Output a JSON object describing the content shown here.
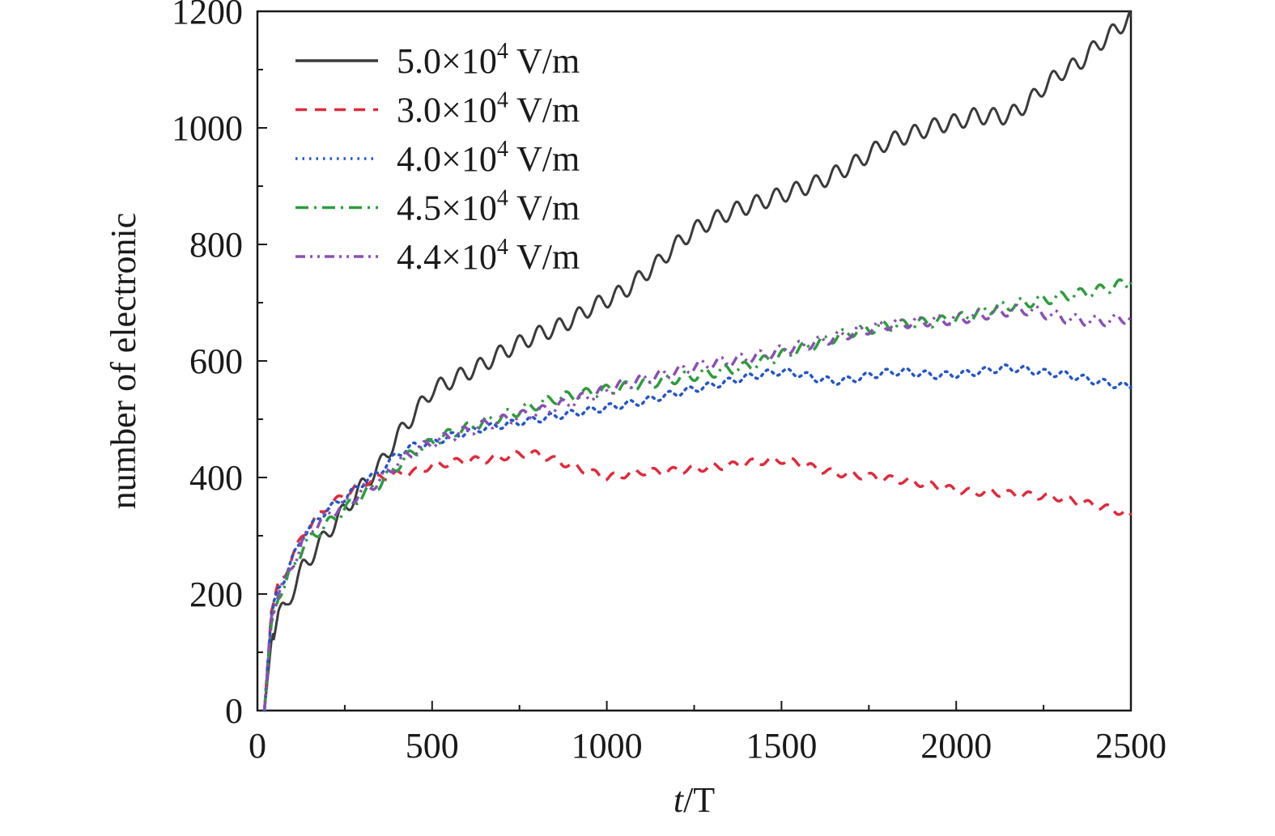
{
  "chart_data": {
    "type": "line",
    "xlabel_italic": "t",
    "xlabel_rest": "/T",
    "ylabel": "number of electronic",
    "xlim": [
      0,
      2500
    ],
    "ylim": [
      0,
      1200
    ],
    "xticks": [
      0,
      500,
      1000,
      1500,
      2000,
      2500
    ],
    "yticks": [
      0,
      200,
      400,
      600,
      800,
      1000,
      1200
    ],
    "xtick_labels": [
      "0",
      "500",
      "1000",
      "1500",
      "2000",
      "2500"
    ],
    "ytick_labels": [
      "0",
      "200",
      "400",
      "600",
      "800",
      "1000",
      "1200"
    ],
    "grid": false,
    "legend_position": "top-left",
    "series": [
      {
        "name": "5.0×10⁴ V/m",
        "name_base": "5.0×10",
        "name_exp": "4",
        "name_unit": " V/m",
        "color": "#3a3a3a",
        "style": "solid",
        "x": [
          20,
          40,
          60,
          80,
          100,
          130,
          160,
          200,
          250,
          300,
          350,
          400,
          450,
          500,
          550,
          600,
          650,
          700,
          750,
          800,
          850,
          900,
          950,
          1000,
          1050,
          1100,
          1150,
          1200,
          1250,
          1300,
          1350,
          1400,
          1450,
          1500,
          1550,
          1600,
          1650,
          1700,
          1750,
          1800,
          1850,
          1900,
          1950,
          2000,
          2050,
          2100,
          2150,
          2200,
          2250,
          2300,
          2350,
          2400,
          2450,
          2500
        ],
        "y": [
          0,
          120,
          165,
          175,
          205,
          245,
          270,
          305,
          345,
          385,
          420,
          470,
          510,
          550,
          565,
          580,
          595,
          615,
          630,
          645,
          655,
          670,
          690,
          705,
          720,
          745,
          770,
          800,
          825,
          840,
          855,
          865,
          875,
          885,
          895,
          905,
          920,
          935,
          955,
          975,
          985,
          995,
          1005,
          1010,
          1020,
          1020,
          1020,
          1040,
          1070,
          1095,
          1110,
          1140,
          1165,
          1190
        ],
        "wiggle": 14
      },
      {
        "name": "3.0×10⁴ V/m",
        "name_base": "3.0×10",
        "name_exp": "4",
        "name_unit": " V/m",
        "color": "#e02a3c",
        "style": "dashed",
        "x": [
          20,
          40,
          60,
          80,
          100,
          130,
          160,
          200,
          250,
          300,
          350,
          400,
          450,
          500,
          550,
          600,
          650,
          700,
          750,
          800,
          850,
          900,
          950,
          1000,
          1050,
          1100,
          1150,
          1200,
          1250,
          1300,
          1350,
          1400,
          1450,
          1500,
          1550,
          1600,
          1650,
          1700,
          1750,
          1800,
          1850,
          1900,
          1950,
          2000,
          2050,
          2100,
          2150,
          2200,
          2250,
          2300,
          2350,
          2400,
          2450,
          2500
        ],
        "y": [
          0,
          170,
          215,
          235,
          265,
          300,
          325,
          350,
          370,
          390,
          400,
          405,
          410,
          420,
          425,
          430,
          430,
          435,
          440,
          440,
          430,
          420,
          410,
          400,
          405,
          410,
          410,
          412,
          415,
          418,
          420,
          425,
          428,
          430,
          425,
          415,
          408,
          405,
          402,
          398,
          395,
          390,
          385,
          378,
          375,
          375,
          372,
          370,
          368,
          365,
          358,
          352,
          345,
          335
        ],
        "wiggle": 6
      },
      {
        "name": "4.0×10⁴ V/m",
        "name_base": "4.0×10",
        "name_exp": "4",
        "name_unit": " V/m",
        "color": "#2456c8",
        "style": "dotted",
        "x": [
          20,
          40,
          60,
          80,
          100,
          130,
          160,
          200,
          250,
          300,
          350,
          400,
          450,
          500,
          550,
          600,
          650,
          700,
          750,
          800,
          850,
          900,
          950,
          1000,
          1050,
          1100,
          1150,
          1200,
          1250,
          1300,
          1350,
          1400,
          1450,
          1500,
          1550,
          1600,
          1650,
          1700,
          1750,
          1800,
          1850,
          1900,
          1950,
          2000,
          2050,
          2100,
          2150,
          2200,
          2250,
          2300,
          2350,
          2400,
          2450,
          2500
        ],
        "y": [
          0,
          165,
          210,
          230,
          260,
          300,
          320,
          345,
          365,
          390,
          410,
          440,
          455,
          460,
          470,
          478,
          485,
          490,
          495,
          500,
          505,
          510,
          515,
          520,
          525,
          530,
          538,
          545,
          552,
          558,
          565,
          572,
          578,
          582,
          578,
          570,
          565,
          568,
          575,
          580,
          582,
          578,
          575,
          577,
          580,
          585,
          588,
          585,
          580,
          578,
          572,
          565,
          560,
          555
        ],
        "wiggle": 6
      },
      {
        "name": "4.5×10⁴ V/m",
        "name_base": "4.5×10",
        "name_exp": "4",
        "name_unit": " V/m",
        "color": "#2e9c3e",
        "style": "dashdot",
        "x": [
          20,
          40,
          60,
          80,
          100,
          130,
          160,
          200,
          250,
          300,
          350,
          400,
          450,
          500,
          550,
          600,
          650,
          700,
          750,
          800,
          850,
          900,
          950,
          1000,
          1050,
          1100,
          1150,
          1200,
          1250,
          1300,
          1350,
          1400,
          1450,
          1500,
          1550,
          1600,
          1650,
          1700,
          1750,
          1800,
          1850,
          1900,
          1950,
          2000,
          2050,
          2100,
          2150,
          2200,
          2250,
          2300,
          2350,
          2400,
          2450,
          2500
        ],
        "y": [
          0,
          150,
          200,
          215,
          245,
          280,
          300,
          320,
          345,
          370,
          390,
          420,
          445,
          460,
          475,
          485,
          495,
          505,
          515,
          525,
          535,
          540,
          545,
          550,
          555,
          560,
          565,
          570,
          575,
          580,
          585,
          590,
          600,
          610,
          620,
          630,
          640,
          650,
          655,
          660,
          662,
          665,
          668,
          672,
          680,
          690,
          695,
          700,
          705,
          710,
          715,
          720,
          728,
          735
        ],
        "wiggle": 9
      },
      {
        "name": "4.4×10⁴ V/m",
        "name_base": "4.4×10",
        "name_exp": "4",
        "name_unit": " V/m",
        "color": "#8a4fb5",
        "style": "dashdotdot",
        "x": [
          20,
          40,
          60,
          80,
          100,
          130,
          160,
          200,
          250,
          300,
          350,
          400,
          450,
          500,
          550,
          600,
          650,
          700,
          750,
          800,
          850,
          900,
          950,
          1000,
          1050,
          1100,
          1150,
          1200,
          1250,
          1300,
          1350,
          1400,
          1450,
          1500,
          1550,
          1600,
          1650,
          1700,
          1750,
          1800,
          1850,
          1900,
          1950,
          2000,
          2050,
          2100,
          2150,
          2200,
          2250,
          2300,
          2350,
          2400,
          2450,
          2500
        ],
        "y": [
          0,
          160,
          205,
          222,
          250,
          290,
          315,
          335,
          355,
          375,
          395,
          425,
          445,
          460,
          470,
          480,
          490,
          498,
          505,
          512,
          520,
          530,
          540,
          550,
          560,
          568,
          575,
          582,
          590,
          596,
          600,
          605,
          610,
          618,
          625,
          632,
          640,
          648,
          655,
          662,
          665,
          668,
          670,
          672,
          676,
          682,
          686,
          688,
          682,
          675,
          670,
          668,
          670,
          675
        ],
        "wiggle": 9
      }
    ]
  }
}
